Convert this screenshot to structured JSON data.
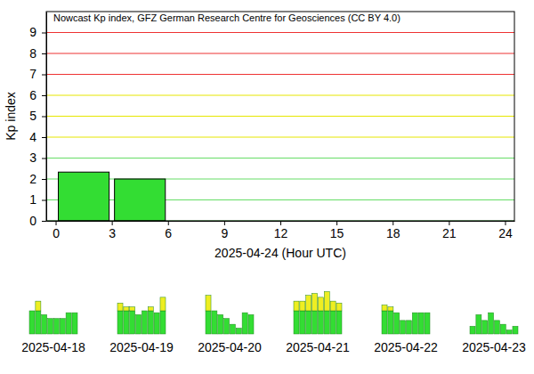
{
  "chart_data": [
    {
      "type": "bar",
      "title": "Nowcast Kp index, GFZ German Research Centre for Geosciences (CC BY 4.0)",
      "x_label": "2025-04-24 (Hour UTC)",
      "y_label": "Kp index",
      "bins": [
        0,
        3,
        6
      ],
      "values": [
        2.33,
        2.0
      ],
      "color": "#33dd33",
      "xlim": [
        -0.5,
        24.5
      ],
      "xticks": [
        0,
        3,
        6,
        9,
        12,
        15,
        18,
        21,
        24
      ],
      "ylim": [
        0,
        10
      ],
      "yticks": [
        0,
        1,
        2,
        3,
        4,
        5,
        6,
        7,
        8,
        9
      ],
      "grid": true
    },
    {
      "type": "bar",
      "x_label": "2025-04-18",
      "categories": [
        null,
        null,
        null,
        null,
        null,
        null,
        null,
        null
      ],
      "series": [
        {
          "color": "#33dd33",
          "values": [
            4,
            4,
            3.33,
            2.67,
            2.67,
            2.67,
            3.67,
            3.67
          ]
        },
        {
          "color": "#eeee22",
          "values": [
            0,
            1.67,
            0,
            0,
            0,
            0,
            0,
            0
          ]
        }
      ],
      "stacked": true,
      "ylim": [
        0,
        9
      ],
      "tick_labels": false
    },
    {
      "type": "bar",
      "x_label": "2025-04-19",
      "categories": [
        null,
        null,
        null,
        null,
        null,
        null,
        null,
        null
      ],
      "series": [
        {
          "color": "#33dd33",
          "values": [
            4,
            4,
            4,
            3.33,
            4,
            4,
            3.67,
            4
          ]
        },
        {
          "color": "#eeee22",
          "values": [
            1.33,
            0.67,
            0.67,
            0,
            0,
            0.67,
            0,
            2.33
          ]
        }
      ],
      "stacked": true,
      "ylim": [
        0,
        9
      ],
      "tick_labels": false
    },
    {
      "type": "bar",
      "x_label": "2025-04-20",
      "categories": [
        null,
        null,
        null,
        null,
        null,
        null,
        null,
        null
      ],
      "series": [
        {
          "color": "#33dd33",
          "values": [
            4,
            4,
            3.33,
            2.67,
            1.67,
            1,
            3.67,
            3.33
          ]
        },
        {
          "color": "#eeee22",
          "values": [
            2.67,
            0,
            0,
            0,
            0,
            0,
            0,
            0
          ]
        }
      ],
      "stacked": true,
      "ylim": [
        0,
        9
      ],
      "tick_labels": false
    },
    {
      "type": "bar",
      "x_label": "2025-04-21",
      "categories": [
        null,
        null,
        null,
        null,
        null,
        null,
        null,
        null
      ],
      "series": [
        {
          "color": "#33dd33",
          "values": [
            4,
            4,
            4,
            4,
            4,
            4,
            4,
            4
          ]
        },
        {
          "color": "#eeee22",
          "values": [
            1.67,
            1.67,
            2.67,
            3.0,
            2.33,
            3.33,
            1.67,
            1.33
          ]
        }
      ],
      "stacked": true,
      "ylim": [
        0,
        9
      ],
      "tick_labels": false
    },
    {
      "type": "bar",
      "x_label": "2025-04-22",
      "categories": [
        null,
        null,
        null,
        null,
        null,
        null,
        null,
        null
      ],
      "series": [
        {
          "color": "#33dd33",
          "values": [
            4,
            4,
            3.67,
            2.33,
            2.33,
            3.67,
            3.67,
            3.67
          ]
        },
        {
          "color": "#eeee22",
          "values": [
            1,
            0.67,
            0,
            0,
            0,
            0,
            0,
            0
          ]
        }
      ],
      "stacked": true,
      "ylim": [
        0,
        9
      ],
      "tick_labels": false
    },
    {
      "type": "bar",
      "x_label": "2025-04-23",
      "categories": [
        null,
        null,
        null,
        null,
        null,
        null,
        null,
        null
      ],
      "series": [
        {
          "color": "#33dd33",
          "values": [
            1.33,
            3.33,
            2.33,
            3.67,
            2.33,
            1.67,
            0.67,
            1.33
          ]
        },
        {
          "color": "#eeee22",
          "values": [
            0,
            0,
            0,
            0,
            0,
            0,
            0,
            0
          ]
        }
      ],
      "stacked": true,
      "ylim": [
        0,
        9
      ],
      "tick_labels": false
    }
  ]
}
